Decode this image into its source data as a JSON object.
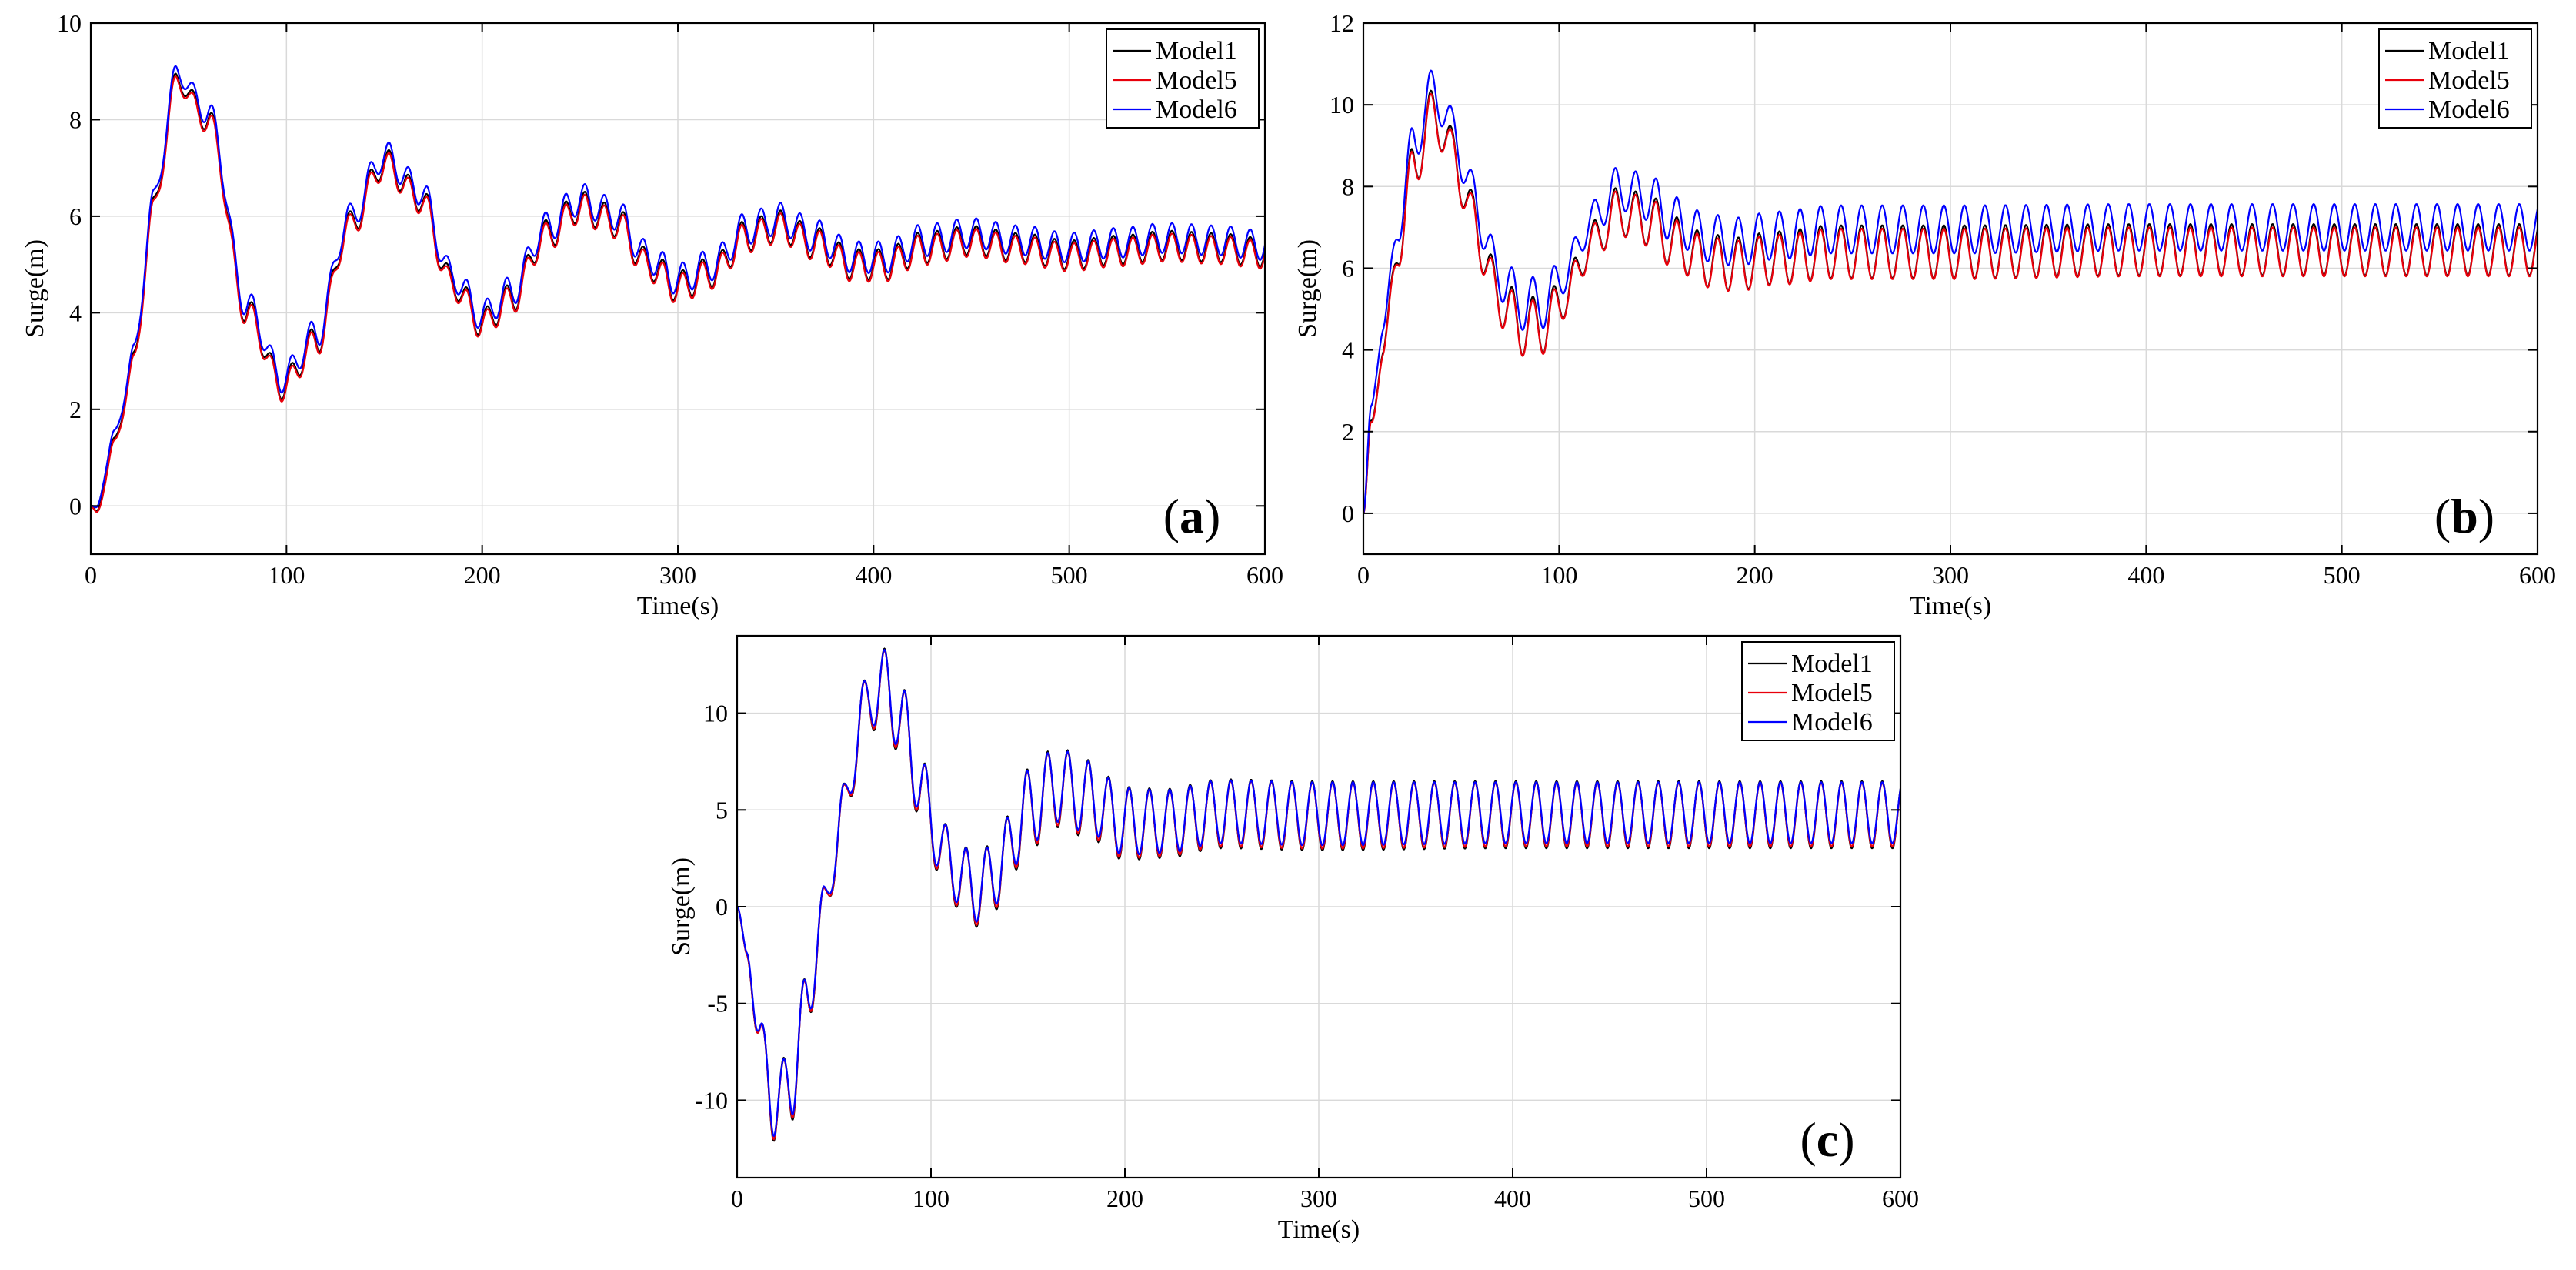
{
  "chart_data": [
    {
      "id": "a",
      "type": "line",
      "panel_label": "a",
      "xlabel": "Time(s)",
      "ylabel": "Surge(m)",
      "xlim": [
        0,
        600
      ],
      "ylim": [
        -1,
        10
      ],
      "xticks": [
        0,
        100,
        200,
        300,
        400,
        500,
        600
      ],
      "yticks": [
        0,
        2,
        4,
        6,
        8,
        10
      ],
      "legend_position": "top-right",
      "series": [
        {
          "name": "Model1",
          "color": "#000000",
          "amp_scale": 1.0,
          "offset": 0.0
        },
        {
          "name": "Model5",
          "color": "#e8000b",
          "amp_scale": 0.97,
          "offset": -0.05
        },
        {
          "name": "Model6",
          "color": "#0000ff",
          "amp_scale": 1.03,
          "offset": 0.15
        }
      ],
      "envelope": {
        "t": [
          0,
          3,
          12,
          22,
          32,
          44,
          60,
          80,
          98,
          115,
          132,
          150,
          168,
          185,
          200,
          215,
          232,
          250,
          268,
          285,
          300,
          318,
          335,
          352,
          370,
          390,
          405,
          425,
          450,
          475,
          500,
          525,
          550,
          575,
          600
        ],
        "mean": [
          0,
          -0.1,
          1.3,
          3.0,
          6.2,
          8.8,
          8.0,
          4.0,
          2.5,
          3.4,
          5.8,
          7.1,
          6.4,
          4.6,
          3.8,
          4.3,
          5.6,
          6.2,
          5.9,
          5.0,
          4.55,
          4.85,
          5.6,
          5.8,
          5.45,
          5.0,
          5.0,
          5.35,
          5.5,
          5.35,
          5.2,
          5.3,
          5.4,
          5.35,
          5.25
        ],
        "osc_amp": [
          0.0,
          0.0,
          0.12,
          0.2,
          0.2,
          0.2,
          0.24,
          0.28,
          0.3,
          0.3,
          0.3,
          0.3,
          0.3,
          0.3,
          0.3,
          0.3,
          0.32,
          0.32,
          0.32,
          0.32,
          0.32,
          0.32,
          0.32,
          0.32,
          0.32,
          0.32,
          0.32,
          0.32,
          0.3,
          0.3,
          0.3,
          0.3,
          0.3,
          0.3,
          0.3
        ],
        "osc_period": 10
      }
    },
    {
      "id": "b",
      "type": "line",
      "panel_label": "b",
      "xlabel": "Time(s)",
      "ylabel": "Surge(m)",
      "xlim": [
        0,
        600
      ],
      "ylim": [
        -1,
        12
      ],
      "xticks": [
        0,
        100,
        200,
        300,
        400,
        500,
        600
      ],
      "yticks": [
        0,
        2,
        4,
        6,
        8,
        10,
        12
      ],
      "legend_position": "top-right",
      "series": [
        {
          "name": "Model1",
          "color": "#000000",
          "amp_scale": 1.05,
          "offset": 0.0
        },
        {
          "name": "Model5",
          "color": "#e8000b",
          "amp_scale": 1.0,
          "offset": -0.05
        },
        {
          "name": "Model6",
          "color": "#0000ff",
          "amp_scale": 0.95,
          "offset": 0.55
        }
      ],
      "envelope": {
        "t": [
          0,
          4,
          10,
          18,
          26,
          36,
          46,
          56,
          68,
          80,
          92,
          104,
          116,
          130,
          145,
          160,
          175,
          190,
          210,
          240,
          300,
          400,
          500,
          600
        ],
        "mean": [
          0,
          2.2,
          4.0,
          6.5,
          8.6,
          9.8,
          8.8,
          7.2,
          5.4,
          4.6,
          4.6,
          5.4,
          6.6,
          7.4,
          7.2,
          6.6,
          6.2,
          6.1,
          6.25,
          6.4,
          6.4,
          6.45,
          6.45,
          6.45
        ],
        "osc_amp": [
          0.0,
          0.1,
          0.25,
          0.4,
          0.55,
          0.6,
          0.6,
          0.65,
          0.7,
          0.7,
          0.65,
          0.55,
          0.5,
          0.55,
          0.6,
          0.62,
          0.62,
          0.62,
          0.62,
          0.62,
          0.62,
          0.6,
          0.6,
          0.6
        ],
        "osc_period": 10.5
      }
    },
    {
      "id": "c",
      "type": "line",
      "panel_label": "c",
      "xlabel": "Time(s)",
      "ylabel": "Surge(m)",
      "xlim": [
        0,
        600
      ],
      "ylim": [
        -14,
        14
      ],
      "xticks": [
        0,
        100,
        200,
        300,
        400,
        500,
        600
      ],
      "yticks": [
        -10,
        -5,
        0,
        5,
        10
      ],
      "legend_position": "top-right",
      "series": [
        {
          "name": "Model1",
          "color": "#000000",
          "amp_scale": 1.05,
          "offset": 0.0
        },
        {
          "name": "Model5",
          "color": "#e8000b",
          "amp_scale": 1.0,
          "offset": 0.0
        },
        {
          "name": "Model6",
          "color": "#0000ff",
          "amp_scale": 0.96,
          "offset": 0.1
        }
      ],
      "envelope": {
        "t": [
          0,
          5,
          12,
          20,
          28,
          36,
          45,
          55,
          65,
          75,
          85,
          95,
          105,
          115,
          125,
          135,
          150,
          165,
          180,
          200,
          220,
          250,
          300,
          400,
          500,
          600
        ],
        "mean": [
          0,
          -2.5,
          -7.0,
          -10.5,
          -9.0,
          -5.0,
          0.0,
          5.0,
          10.0,
          11.5,
          9.5,
          6.0,
          3.0,
          1.5,
          0.8,
          2.0,
          5.0,
          6.2,
          5.6,
          4.3,
          4.3,
          4.8,
          4.7,
          4.75,
          4.75,
          4.75
        ],
        "osc_amp": [
          0.0,
          0.3,
          1.0,
          1.8,
          2.0,
          1.5,
          1.0,
          1.3,
          1.6,
          1.8,
          1.8,
          1.6,
          1.4,
          1.6,
          1.8,
          2.0,
          2.0,
          2.0,
          1.9,
          1.8,
          1.7,
          1.7,
          1.7,
          1.65,
          1.65,
          1.65
        ],
        "osc_period": 10.5
      }
    }
  ]
}
